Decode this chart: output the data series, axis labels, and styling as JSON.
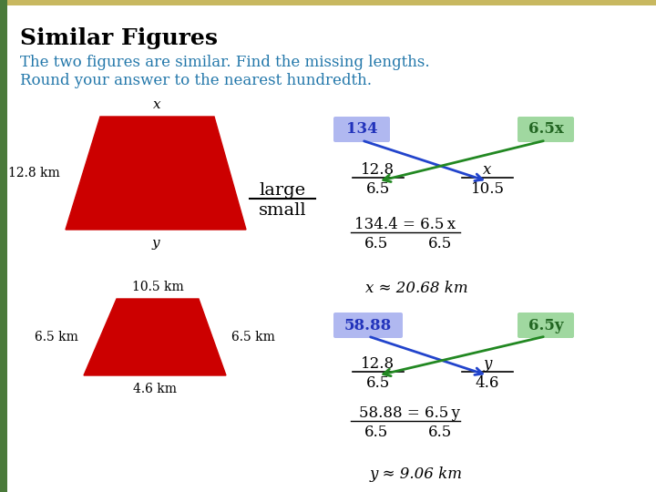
{
  "title": "Similar Figures",
  "subtitle_line1": "The two figures are similar. Find the missing lengths.",
  "subtitle_line2": "Round your answer to the nearest hundredth.",
  "title_color": "#000000",
  "subtitle_color": "#2277aa",
  "bg_color": "#ffffff",
  "left_bar_color": "#4a7a3a",
  "top_bar_color": "#c8b860",
  "trapezoid_color": "#cc0000",
  "box1_color": "#b0b8f0",
  "box2_color": "#a0d8a0",
  "blue_arrow": "#2244cc",
  "green_arrow": "#228822",
  "s1": {
    "box1_text": "134",
    "box2_text": "6.5x",
    "frac1_num": "12.8",
    "frac1_den": "6.5",
    "frac2_num": "x",
    "frac2_den": "10.5",
    "eq_num": "134.4 = 6.5x",
    "eq_den1": "6.5",
    "eq_den2": "6.5",
    "result": "x ≈ 20.68 km"
  },
  "s2": {
    "box1_text": "58.88",
    "box2_text": "6.5y",
    "frac1_num": "12.8",
    "frac1_den": "6.5",
    "frac2_num": "y",
    "frac2_den": "4.6",
    "eq_num": "58.88 = 6.5y",
    "eq_den1": "6.5",
    "eq_den2": "6.5",
    "result": "y ≈ 9.06 km"
  }
}
